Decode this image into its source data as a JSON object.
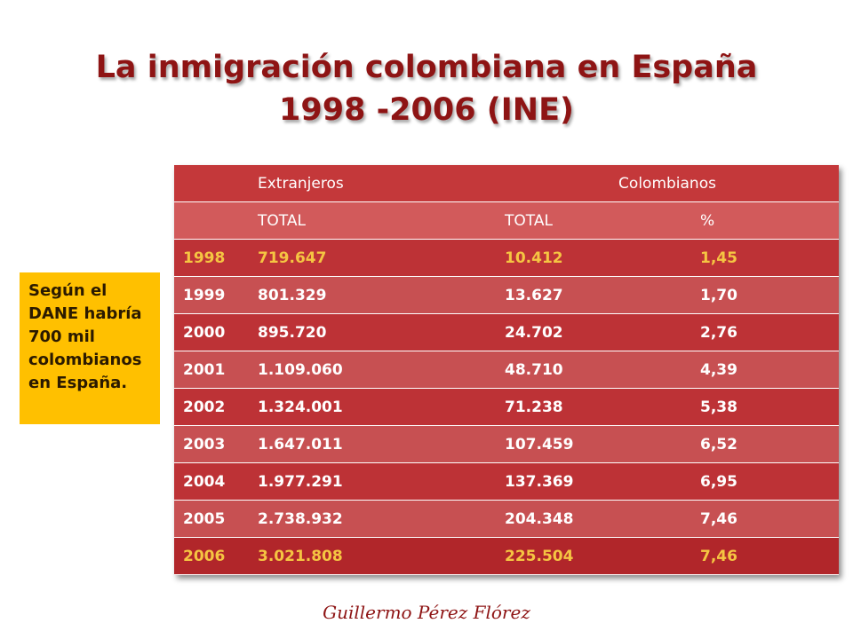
{
  "title": {
    "line1": "La inmigración colombiana en España",
    "line2": "1998 -2006 (INE)"
  },
  "table": {
    "group_headers": [
      "",
      "Extranjeros",
      "Colombianos"
    ],
    "sub_headers": [
      "",
      "TOTAL",
      "TOTAL",
      "%"
    ],
    "rows": [
      [
        "1998",
        "719.647",
        "10.412",
        "1,45"
      ],
      [
        "1999",
        "801.329",
        "13.627",
        "1,70"
      ],
      [
        "2000",
        "895.720",
        "24.702",
        "2,76"
      ],
      [
        "2001",
        "1.109.060",
        "48.710",
        "4,39"
      ],
      [
        "2002",
        "1.324.001",
        "71.238",
        "5,38"
      ],
      [
        "2003",
        "1.647.011",
        "107.459",
        "6,52"
      ],
      [
        "2004",
        "1.977.291",
        "137.369",
        "6,95"
      ],
      [
        "2005",
        "2.738.932",
        "204.348",
        "7,46"
      ],
      [
        "2006",
        "3.021.808",
        "225.504",
        "7,46"
      ]
    ]
  },
  "note": {
    "lines": [
      "Según el",
      "DANE habría",
      "700 mil",
      "colombianos",
      "en España."
    ]
  },
  "signature": "Guillermo Pérez Flórez",
  "colors": {
    "title": "#8e1414",
    "table_red": "#c4383a",
    "highlight_gold": "#f5c542",
    "note_bg": "#ffc000"
  }
}
